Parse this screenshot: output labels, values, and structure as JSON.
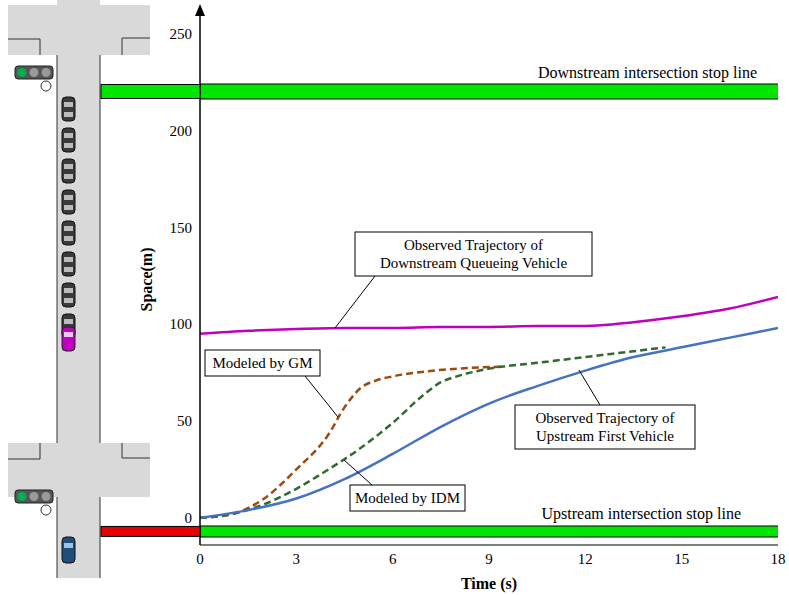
{
  "chart_data": {
    "type": "line",
    "xlabel": "Time (s)",
    "ylabel": "Space(m)",
    "xlim": [
      0,
      18
    ],
    "xticks": [
      0,
      3,
      6,
      9,
      12,
      15,
      18
    ],
    "ylim": [
      -14,
      260
    ],
    "yticks": [
      0,
      50,
      100,
      150,
      200,
      250
    ],
    "grid": false,
    "series": [
      {
        "name": "Observed Trajectory of Downstream Queueing Vehicle",
        "color": "#bf00bf",
        "line_style": "solid",
        "x": [
          0,
          1.5,
          3,
          4.5,
          6,
          7.5,
          9,
          10.5,
          12,
          13.5,
          15,
          16.5,
          18
        ],
        "values": [
          95,
          96.5,
          97.5,
          98,
          98,
          98.5,
          98.5,
          99,
          99,
          101,
          104,
          108,
          114
        ]
      },
      {
        "name": "Modeled by GM",
        "color": "#9c4a0e",
        "line_style": "dashed",
        "x": [
          0,
          1,
          2,
          3,
          4,
          4.5,
          5,
          5.5,
          6,
          7,
          8,
          9.5
        ],
        "values": [
          0,
          2,
          10,
          25,
          43,
          57,
          67,
          71,
          73,
          75.5,
          77,
          78
        ]
      },
      {
        "name": "Modeled by IDM",
        "color": "#2f6b2f",
        "line_style": "dashed",
        "x": [
          0,
          1,
          2,
          3,
          4,
          5,
          6,
          7,
          7.5,
          8,
          9,
          10.5,
          12,
          13.5,
          14.5
        ],
        "values": [
          0,
          2,
          7,
          15,
          25,
          36,
          49,
          64,
          70,
          73,
          77,
          80,
          83,
          86,
          88
        ]
      },
      {
        "name": "Observed Trajectory of Upstream First Vehicle",
        "color": "#4472c4",
        "line_style": "solid",
        "x": [
          0,
          1.5,
          3,
          4.5,
          6,
          7.5,
          9,
          10.5,
          12,
          13.5,
          15,
          16.5,
          18
        ],
        "values": [
          0,
          4,
          10,
          20,
          33,
          47,
          59,
          68,
          76,
          83,
          88,
          93,
          98
        ]
      }
    ],
    "stop_lines": [
      {
        "label": "Downstream intersection stop line",
        "y": 220,
        "color": "#00e600"
      },
      {
        "label": "Upstream intersection stop line",
        "y": -7,
        "color": "#00e600"
      }
    ]
  }
}
